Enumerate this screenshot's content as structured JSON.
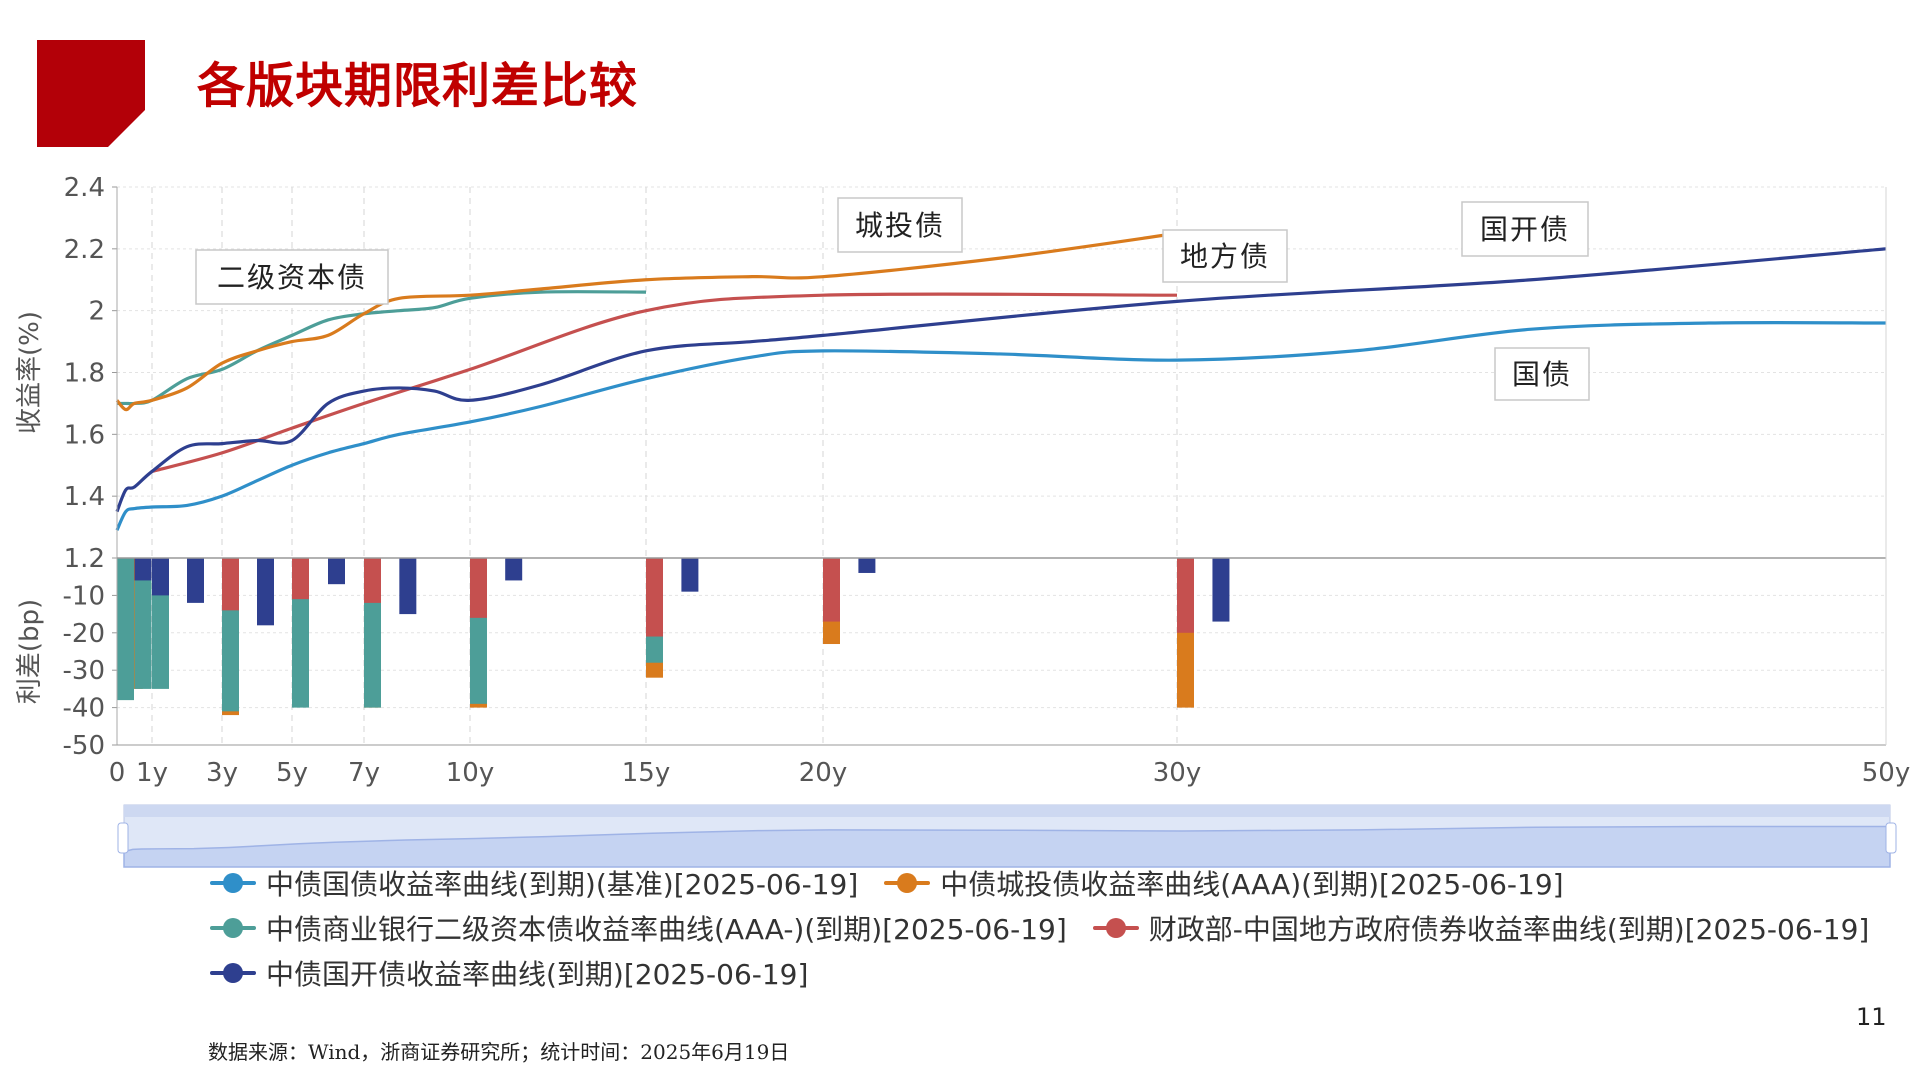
{
  "slide": {
    "title": "各版块期限利差比较",
    "page_number": "11",
    "source": "数据来源：Wind，浙商证券研究所；统计时间：2025年6月19日",
    "accent_color": "#b30008"
  },
  "chart_data": [
    {
      "type": "line",
      "ylabel": "收益率(%)",
      "ylim": [
        1.2,
        2.4
      ],
      "yticks": [
        "1.2",
        "1.4",
        "1.6",
        "1.8",
        "2",
        "2.2",
        "2.4"
      ],
      "x_ticks": [
        "0",
        "1y",
        "3y",
        "5y",
        "7y",
        "10y",
        "15y",
        "20y",
        "30y",
        "50y"
      ],
      "x_tick_values": [
        0,
        1,
        3,
        5,
        7,
        10,
        15,
        20,
        30,
        50
      ],
      "xlim": [
        0,
        50
      ],
      "grid": true,
      "annotations": [
        "二级资本债",
        "城投债",
        "地方债",
        "国开债",
        "国债"
      ],
      "series": [
        {
          "name": "中债国债收益率曲线(到期)(基准)[2025-06-19]",
          "color": "#2f8fc9",
          "x": [
            0,
            0.25,
            0.5,
            1,
            2,
            3,
            4,
            5,
            6,
            7,
            8,
            10,
            12,
            15,
            18,
            20,
            25,
            30,
            35,
            40,
            45,
            50
          ],
          "y": [
            1.29,
            1.35,
            1.36,
            1.365,
            1.37,
            1.4,
            1.45,
            1.5,
            1.54,
            1.57,
            1.6,
            1.64,
            1.69,
            1.78,
            1.85,
            1.87,
            1.86,
            1.84,
            1.87,
            1.94,
            1.96,
            1.96
          ]
        },
        {
          "name": "中债城投债收益率曲线(AAA)(到期)[2025-06-19]",
          "color": "#d97b1d",
          "x": [
            0,
            0.25,
            0.5,
            1,
            2,
            3,
            4,
            5,
            6,
            7,
            8,
            10,
            12,
            15,
            18,
            20,
            25,
            30
          ],
          "y": [
            1.71,
            1.68,
            1.7,
            1.71,
            1.75,
            1.83,
            1.87,
            1.9,
            1.92,
            1.99,
            2.04,
            2.05,
            2.07,
            2.1,
            2.11,
            2.11,
            2.17,
            2.25
          ]
        },
        {
          "name": "中债商业银行二级资本债收益率曲线(AAA-)(到期)[2025-06-19]",
          "color": "#4d9e98",
          "x": [
            0,
            0.25,
            0.5,
            1,
            2,
            3,
            4,
            5,
            6,
            7,
            8,
            9,
            10,
            12,
            15
          ],
          "y": [
            1.7,
            1.7,
            1.7,
            1.71,
            1.78,
            1.81,
            1.87,
            1.92,
            1.97,
            1.99,
            2.0,
            2.01,
            2.04,
            2.06,
            2.06
          ]
        },
        {
          "name": "财政部-中国地方政府债券收益率曲线(到期)[2025-06-19]",
          "color": "#c5504f",
          "x": [
            1,
            3,
            5,
            7,
            10,
            15,
            20,
            30
          ],
          "y": [
            1.48,
            1.54,
            1.62,
            1.7,
            1.81,
            2.0,
            2.05,
            2.05
          ]
        },
        {
          "name": "中债国开债收益率曲线(到期)[2025-06-19]",
          "color": "#2e3f8f",
          "x": [
            0,
            0.25,
            0.5,
            1,
            2,
            3,
            4,
            5,
            6,
            7,
            8,
            9,
            10,
            12,
            15,
            18,
            20,
            30,
            40,
            50
          ],
          "y": [
            1.35,
            1.42,
            1.43,
            1.48,
            1.56,
            1.57,
            1.58,
            1.58,
            1.7,
            1.74,
            1.75,
            1.74,
            1.71,
            1.76,
            1.87,
            1.9,
            1.92,
            2.03,
            2.1,
            2.2
          ]
        }
      ]
    },
    {
      "type": "bar",
      "ylabel": "利差(bp)",
      "ylim": [
        -50,
        0
      ],
      "yticks": [
        "-10",
        "-20",
        "-30",
        "-40",
        "-50"
      ],
      "series": [
        {
          "name": "中债国债收益率曲线(到期)(基准)[2025-06-19]",
          "color": "#2f8fc9",
          "x": [],
          "values": []
        },
        {
          "name": "中债城投债收益率曲线(AAA)(到期)[2025-06-19]",
          "color": "#d97b1d",
          "x": [
            0.25,
            3,
            5,
            7,
            10,
            15,
            20,
            30
          ],
          "values": [
            -35,
            -42,
            -38,
            -40,
            -40,
            -32,
            -23,
            -40
          ]
        },
        {
          "name": "中债商业银行二级资本债收益率曲线(AAA-)(到期)[2025-06-19]",
          "color": "#4d9e98",
          "x": [
            0,
            0.5,
            1,
            3,
            5,
            7,
            10,
            15
          ],
          "values": [
            -38,
            -35,
            -35,
            -41,
            -40,
            -40,
            -39,
            -28
          ]
        },
        {
          "name": "财政部-中国地方政府债券收益率曲线(到期)[2025-06-19]",
          "color": "#c5504f",
          "x": [
            1,
            3,
            5,
            7,
            10,
            15,
            20,
            30
          ],
          "values": [
            -2,
            -14,
            -11,
            -12,
            -16,
            -21,
            -17,
            -20
          ]
        },
        {
          "name": "中债国开债收益率曲线(到期)[2025-06-19]",
          "color": "#2e3f8f",
          "x": [
            0.5,
            1,
            2,
            4,
            6,
            8,
            11,
            16,
            21,
            31
          ],
          "values": [
            -6,
            -10,
            -12,
            -18,
            -7,
            -15,
            -6,
            -9,
            -4,
            -17
          ]
        }
      ]
    }
  ]
}
